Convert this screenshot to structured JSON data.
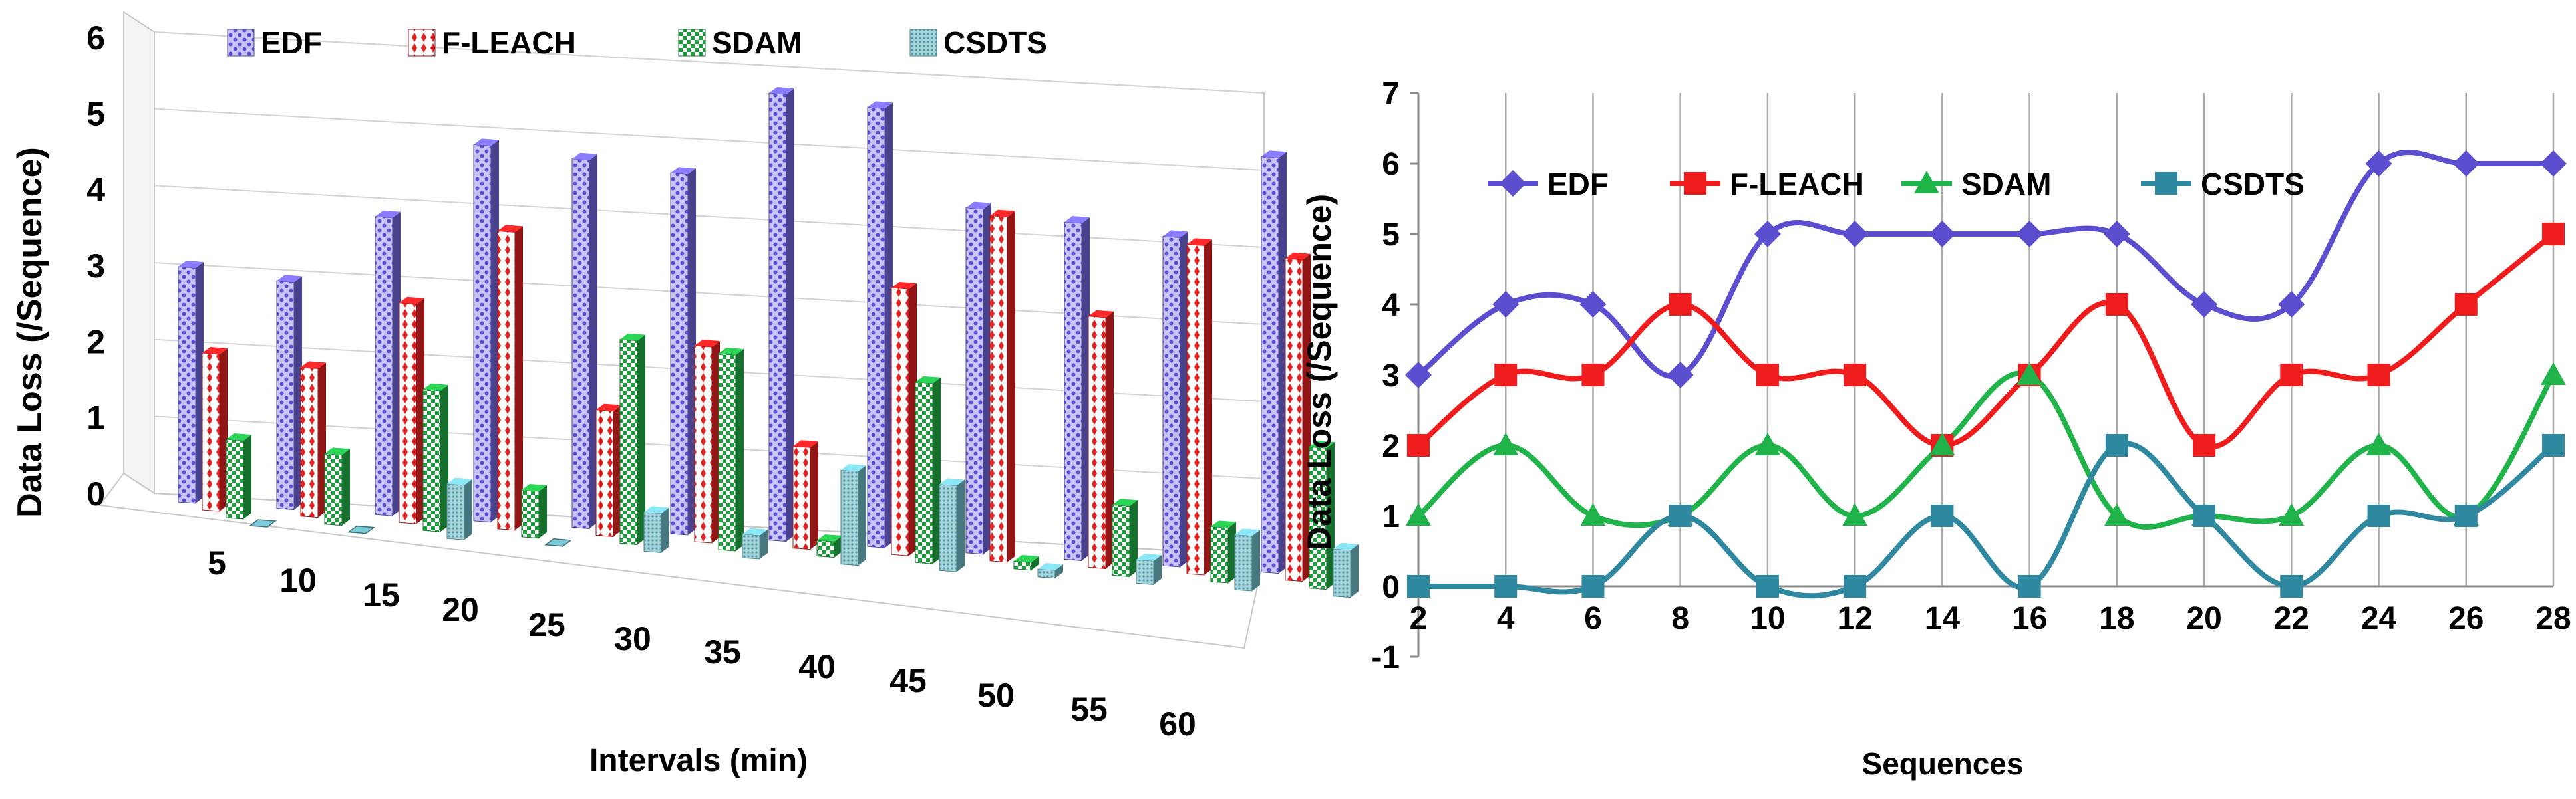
{
  "chart_data": [
    {
      "type": "bar",
      "style": "3d-clustered",
      "categories": [
        "5",
        "10",
        "15",
        "20",
        "25",
        "30",
        "35",
        "40",
        "45",
        "50",
        "55",
        "60"
      ],
      "series": [
        {
          "name": "EDF",
          "color": "#6f64d8",
          "values": [
            3.0,
            2.9,
            3.8,
            4.8,
            4.7,
            4.6,
            5.7,
            5.6,
            4.4,
            4.3,
            4.2,
            5.3
          ]
        },
        {
          "name": "F-LEACH",
          "color": "#e02020",
          "values": [
            2.0,
            1.9,
            2.8,
            3.8,
            1.6,
            2.5,
            1.3,
            3.4,
            4.4,
            3.2,
            4.2,
            4.1
          ]
        },
        {
          "name": "SDAM",
          "color": "#22aa44",
          "values": [
            1.0,
            0.9,
            1.8,
            0.6,
            2.6,
            2.5,
            0.2,
            2.3,
            0.1,
            0.9,
            0.7,
            1.8
          ]
        },
        {
          "name": "CSDTS",
          "color": "#6fb8c4",
          "values": [
            0.0,
            0.0,
            0.7,
            0.0,
            0.5,
            0.3,
            1.2,
            1.1,
            0.1,
            0.3,
            0.7,
            0.6
          ]
        }
      ],
      "title": "",
      "xlabel": "Intervals (min)",
      "ylabel": "Data Loss (/Sequence)",
      "yticks": [
        "0",
        "1",
        "2",
        "3",
        "4",
        "5",
        "6"
      ],
      "ylim": [
        0,
        6
      ],
      "legend_position": "top"
    },
    {
      "type": "line",
      "smooth": true,
      "x": [
        2,
        4,
        6,
        8,
        10,
        12,
        14,
        16,
        18,
        20,
        22,
        24,
        26,
        28
      ],
      "xticks": [
        "2",
        "4",
        "6",
        "8",
        "10",
        "12",
        "14",
        "16",
        "18",
        "20",
        "22",
        "24",
        "26",
        "28"
      ],
      "series": [
        {
          "name": "EDF",
          "color": "#5b4fd0",
          "marker": "diamond",
          "values": [
            3,
            4,
            4,
            3,
            5,
            5,
            5,
            5,
            5,
            4,
            4,
            6,
            6,
            6
          ]
        },
        {
          "name": "F-LEACH",
          "color": "#ee1c1c",
          "marker": "square",
          "values": [
            2,
            3,
            3,
            4,
            3,
            3,
            2,
            3,
            4,
            2,
            3,
            3,
            4,
            5
          ]
        },
        {
          "name": "SDAM",
          "color": "#1fb34a",
          "marker": "triangle",
          "values": [
            1,
            2,
            1,
            1,
            2,
            1,
            2,
            3,
            1,
            1,
            1,
            2,
            1,
            3
          ]
        },
        {
          "name": "CSDTS",
          "color": "#2e88a0",
          "marker": "square",
          "values": [
            0,
            0,
            0,
            1,
            0,
            0,
            1,
            0,
            2,
            1,
            0,
            1,
            1,
            2
          ]
        }
      ],
      "title": "",
      "xlabel": "Sequences",
      "ylabel": "Data Loss (/Sequence)",
      "yticks": [
        "-1",
        "0",
        "1",
        "2",
        "3",
        "4",
        "5",
        "6",
        "7"
      ],
      "ylim": [
        -1,
        7
      ],
      "grid": "vertical",
      "legend_position": "top"
    }
  ]
}
